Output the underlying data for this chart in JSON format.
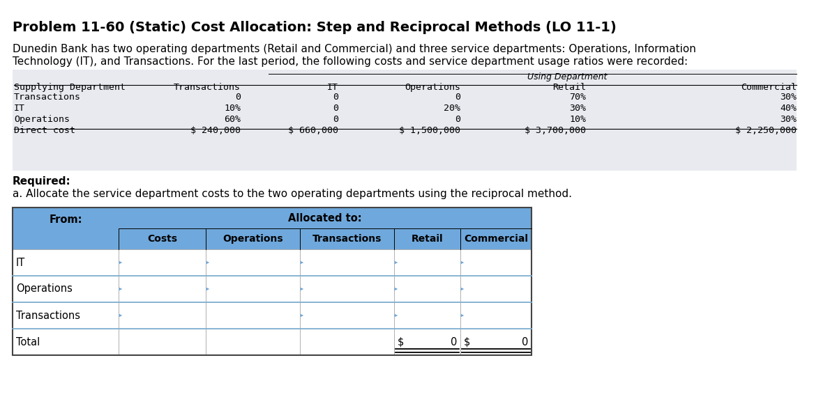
{
  "title": "Problem 11-60 (Static) Cost Allocation: Step and Reciprocal Methods (LO 11-1)",
  "body_line1": "Dunedin Bank has two operating departments (Retail and Commercial) and three service departments: Operations, Information",
  "body_line2": "Technology (IT), and Transactions. For the last period, the following costs and service department usage ratios were recorded:",
  "upper_table": {
    "using_dept_label": "Using Department",
    "col_headers": [
      "Supplying Department",
      "Transactions",
      "IT",
      "Operations",
      "Retail",
      "Commercial"
    ],
    "rows": [
      [
        "Transactions",
        "0",
        "0",
        "0",
        "70%",
        "30%"
      ],
      [
        "IT",
        "10%",
        "0",
        "20%",
        "30%",
        "40%"
      ],
      [
        "Operations",
        "60%",
        "0",
        "0",
        "10%",
        "30%"
      ],
      [
        "Direct cost",
        "$ 240,000",
        "$ 660,000",
        "$ 1,500,000",
        "$ 3,700,000",
        "$ 2,250,000"
      ]
    ],
    "bg_color": "#e8eaf0",
    "line_color": "#888888"
  },
  "required_label": "Required:",
  "required_body": "a. Allocate the service department costs to the two operating departments using the reciprocal method.",
  "lower_table": {
    "from_label": "From:",
    "allocated_label": "Allocated to:",
    "col_headers": [
      "Costs",
      "Operations",
      "Transactions",
      "Retail",
      "Commercial"
    ],
    "row_labels": [
      "IT",
      "Operations",
      "Transactions",
      "Total"
    ],
    "total_retail": "0",
    "total_commercial": "0",
    "header_bg": "#6fa8dc",
    "header_text": "#000000",
    "row_border": "#7bafd4",
    "arrow_color": "#6fa8dc"
  },
  "bg_color": "#ffffff",
  "title_fontsize": 14,
  "body_fontsize": 11,
  "table_fontsize": 9.5,
  "lower_fontsize": 10
}
